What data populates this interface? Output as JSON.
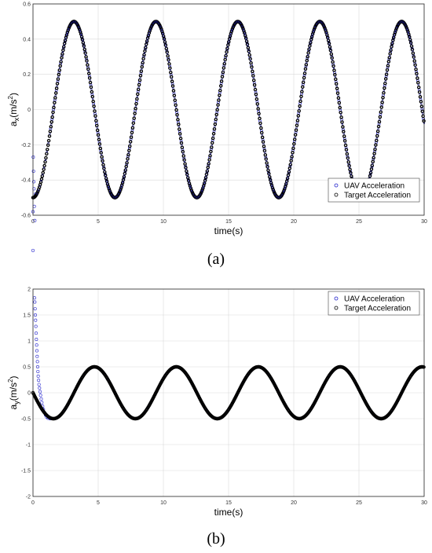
{
  "chart_data": [
    {
      "type": "scatter",
      "panel_label": "(a)",
      "xlabel": "time(s)",
      "ylabel": "a_x(m/s^2)",
      "ylabel_parts": {
        "base": "a",
        "sub": "x",
        "unit": "(m/s",
        "sup": "2",
        "close": ")"
      },
      "xlim": [
        0,
        30
      ],
      "ylim": [
        -0.6,
        0.6
      ],
      "xticks": [
        0,
        5,
        10,
        15,
        20,
        25,
        30
      ],
      "yticks": [
        -0.6,
        -0.4,
        -0.2,
        0,
        0.2,
        0.4,
        0.6
      ],
      "grid": true,
      "legend_position": "bottom-right",
      "series": [
        {
          "name": "UAV Acceleration",
          "color": "#2222cc",
          "marker": "circle",
          "model": "-0.5*cos(t)",
          "transient_points": [
            [
              0.0,
              -0.58
            ],
            [
              0.02,
              -0.27
            ],
            [
              0.04,
              -0.35
            ],
            [
              0.06,
              -0.41
            ],
            [
              0.08,
              -0.45
            ],
            [
              0.1,
              -0.55
            ],
            [
              0.14,
              -0.63
            ],
            [
              0.18,
              -0.48
            ],
            [
              0.0,
              -0.8
            ]
          ]
        },
        {
          "name": "Target Acceleration",
          "color": "#000000",
          "marker": "circle",
          "model": "-0.5*cos(t)"
        }
      ]
    },
    {
      "type": "scatter",
      "panel_label": "(b)",
      "xlabel": "time(s)",
      "ylabel": "a_y(m/s^2)",
      "ylabel_parts": {
        "base": "a",
        "sub": "y",
        "unit": "(m/s",
        "sup": "2",
        "close": ")"
      },
      "xlim": [
        0,
        30
      ],
      "ylim": [
        -2,
        2
      ],
      "xticks": [
        0,
        5,
        10,
        15,
        20,
        25,
        30
      ],
      "yticks": [
        -2,
        -1.5,
        -1,
        -0.5,
        0,
        0.5,
        1,
        1.5,
        2
      ],
      "grid": true,
      "legend_position": "top-right",
      "series": [
        {
          "name": "UAV Acceleration",
          "color": "#2222cc",
          "marker": "circle",
          "model": "-0.5*sin(t)",
          "transient_points": [
            [
              0.12,
              1.83
            ],
            [
              0.14,
              1.75
            ],
            [
              0.16,
              1.62
            ],
            [
              0.18,
              1.5
            ],
            [
              0.2,
              1.4
            ],
            [
              0.22,
              1.28
            ],
            [
              0.24,
              1.15
            ],
            [
              0.26,
              1.03
            ],
            [
              0.28,
              0.92
            ],
            [
              0.3,
              0.81
            ],
            [
              0.32,
              0.7
            ],
            [
              0.34,
              0.6
            ],
            [
              0.36,
              0.5
            ],
            [
              0.38,
              0.41
            ],
            [
              0.4,
              0.32
            ],
            [
              0.43,
              0.24
            ],
            [
              0.46,
              0.16
            ],
            [
              0.5,
              0.09
            ],
            [
              0.54,
              0.02
            ],
            [
              0.58,
              -0.05
            ],
            [
              0.63,
              -0.12
            ],
            [
              0.68,
              -0.19
            ],
            [
              0.74,
              -0.26
            ],
            [
              0.8,
              -0.32
            ],
            [
              0.88,
              -0.38
            ],
            [
              0.96,
              -0.43
            ],
            [
              1.05,
              -0.47
            ],
            [
              1.15,
              -0.49
            ],
            [
              1.3,
              -0.5
            ]
          ]
        },
        {
          "name": "Target Acceleration",
          "color": "#000000",
          "marker": "circle",
          "model": "-0.5*sin(t)"
        }
      ]
    }
  ]
}
